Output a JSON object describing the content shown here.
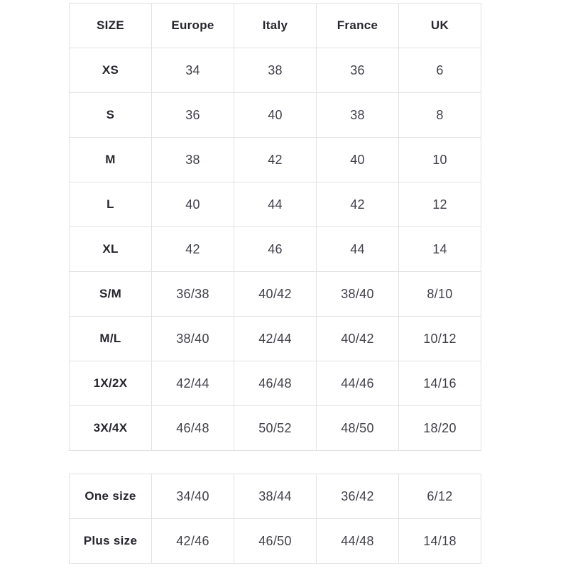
{
  "colors": {
    "page_background": "#ffffff",
    "table_border": "#e2e2e2",
    "header_text": "#26262e",
    "cell_text": "#40404a"
  },
  "size_chart": {
    "columns": [
      "SIZE",
      "Europe",
      "Italy",
      "France",
      "UK"
    ],
    "rows": [
      {
        "size": "XS",
        "europe": "34",
        "italy": "38",
        "france": "36",
        "uk": "6"
      },
      {
        "size": "S",
        "europe": "36",
        "italy": "40",
        "france": "38",
        "uk": "8"
      },
      {
        "size": "M",
        "europe": "38",
        "italy": "42",
        "france": "40",
        "uk": "10"
      },
      {
        "size": "L",
        "europe": "40",
        "italy": "44",
        "france": "42",
        "uk": "12"
      },
      {
        "size": "XL",
        "europe": "42",
        "italy": "46",
        "france": "44",
        "uk": "14"
      },
      {
        "size": "S/M",
        "europe": "36/38",
        "italy": "40/42",
        "france": "38/40",
        "uk": "8/10"
      },
      {
        "size": "M/L",
        "europe": "38/40",
        "italy": "42/44",
        "france": "40/42",
        "uk": "10/12"
      },
      {
        "size": "1X/2X",
        "europe": "42/44",
        "italy": "46/48",
        "france": "44/46",
        "uk": "14/16"
      },
      {
        "size": "3X/4X",
        "europe": "46/48",
        "italy": "50/52",
        "france": "48/50",
        "uk": "18/20"
      }
    ]
  },
  "special_sizes": {
    "rows": [
      {
        "size": "One size",
        "europe": "34/40",
        "italy": "38/44",
        "france": "36/42",
        "uk": "6/12"
      },
      {
        "size": "Plus size",
        "europe": "42/46",
        "italy": "46/50",
        "france": "44/48",
        "uk": "14/18"
      }
    ]
  }
}
